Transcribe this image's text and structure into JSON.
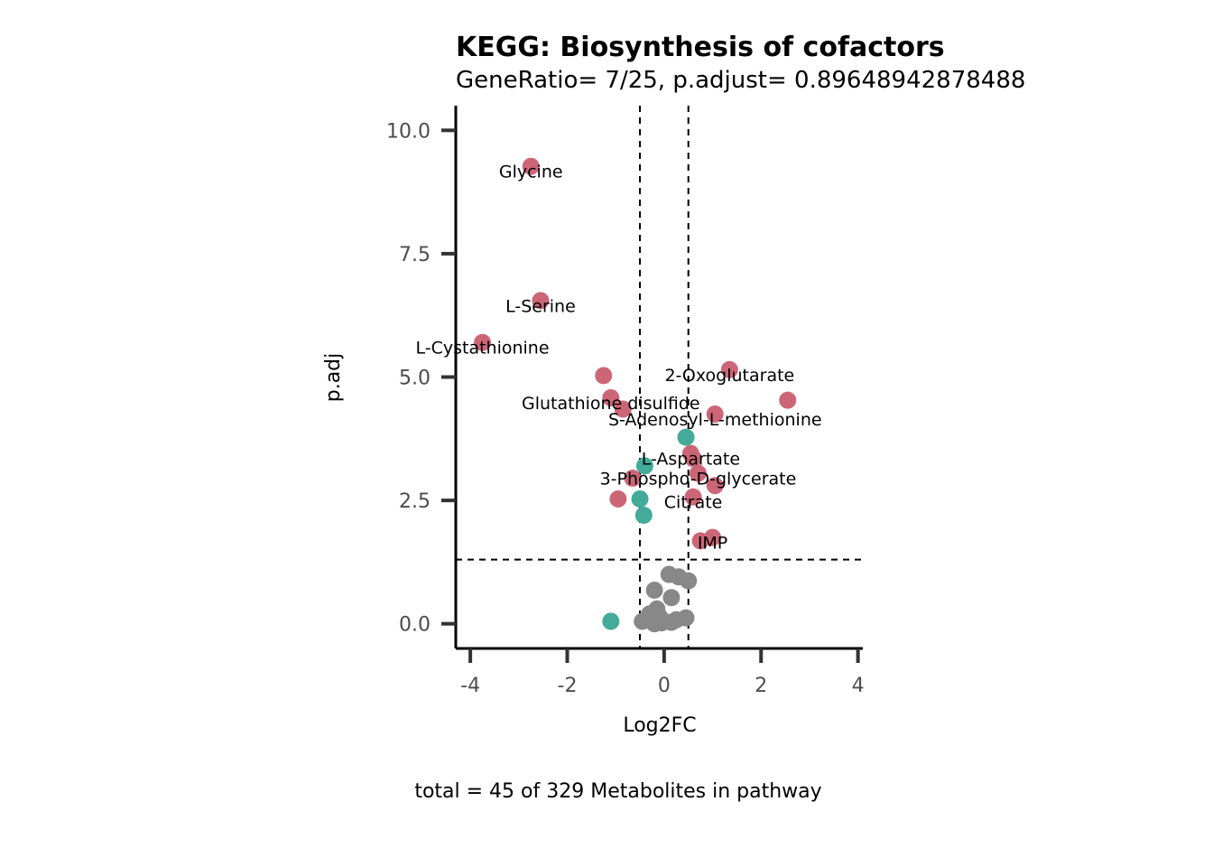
{
  "chart_data": {
    "type": "scatter",
    "title": "KEGG: Biosynthesis of cofactors",
    "subtitle": "GeneRatio= 7/25, p.adjust= 0.89648942878488",
    "xlabel": "Log2FC",
    "ylabel": "p.adj",
    "caption": "total = 45 of 329 Metabolites in pathway",
    "xlim": [
      -4.3,
      4.1
    ],
    "ylim": [
      -0.5,
      10.5
    ],
    "x_ticks": [
      -4,
      -2,
      0,
      2,
      4
    ],
    "x_tick_labels": [
      "-4",
      "-2",
      "0",
      "2",
      "4"
    ],
    "y_ticks": [
      0,
      2.5,
      5,
      7.5,
      10
    ],
    "y_tick_labels": [
      "0.0",
      "2.5",
      "5.0",
      "7.5",
      "10.0"
    ],
    "vlines": [
      -0.5,
      0.5
    ],
    "hline": 1.3,
    "grid": false,
    "colors": {
      "up": "#cc6677",
      "down": "#44aa99",
      "ns": "#888888"
    },
    "points": [
      {
        "x": -2.75,
        "y": 9.27,
        "group": "up"
      },
      {
        "x": -2.55,
        "y": 6.55,
        "group": "up"
      },
      {
        "x": -3.75,
        "y": 5.7,
        "group": "up"
      },
      {
        "x": -1.25,
        "y": 5.03,
        "group": "up"
      },
      {
        "x": -1.1,
        "y": 4.58,
        "group": "up"
      },
      {
        "x": -0.85,
        "y": 4.35,
        "group": "up"
      },
      {
        "x": 1.35,
        "y": 5.15,
        "group": "up"
      },
      {
        "x": 2.55,
        "y": 4.53,
        "group": "up"
      },
      {
        "x": 1.05,
        "y": 4.25,
        "group": "up"
      },
      {
        "x": 0.55,
        "y": 3.45,
        "group": "up"
      },
      {
        "x": 0.6,
        "y": 3.35,
        "group": "up"
      },
      {
        "x": 0.7,
        "y": 3.05,
        "group": "up"
      },
      {
        "x": -0.65,
        "y": 2.95,
        "group": "up"
      },
      {
        "x": 1.05,
        "y": 2.8,
        "group": "up"
      },
      {
        "x": -0.95,
        "y": 2.53,
        "group": "up"
      },
      {
        "x": 0.6,
        "y": 2.57,
        "group": "up"
      },
      {
        "x": 1.0,
        "y": 1.75,
        "group": "up"
      },
      {
        "x": 0.75,
        "y": 1.68,
        "group": "up"
      },
      {
        "x": 0.45,
        "y": 3.78,
        "group": "down"
      },
      {
        "x": -0.4,
        "y": 3.2,
        "group": "down"
      },
      {
        "x": -0.5,
        "y": 2.53,
        "group": "down"
      },
      {
        "x": -0.42,
        "y": 2.2,
        "group": "down"
      },
      {
        "x": -1.1,
        "y": 0.05,
        "group": "down"
      },
      {
        "x": 0.1,
        "y": 1.0,
        "group": "ns"
      },
      {
        "x": 0.3,
        "y": 0.95,
        "group": "ns"
      },
      {
        "x": 0.5,
        "y": 0.87,
        "group": "ns"
      },
      {
        "x": -0.2,
        "y": 0.68,
        "group": "ns"
      },
      {
        "x": 0.15,
        "y": 0.53,
        "group": "ns"
      },
      {
        "x": -0.15,
        "y": 0.3,
        "group": "ns"
      },
      {
        "x": -0.3,
        "y": 0.2,
        "group": "ns"
      },
      {
        "x": -0.1,
        "y": 0.15,
        "group": "ns"
      },
      {
        "x": 0.45,
        "y": 0.12,
        "group": "ns"
      },
      {
        "x": 0.25,
        "y": 0.08,
        "group": "ns"
      },
      {
        "x": -0.45,
        "y": 0.05,
        "group": "ns"
      },
      {
        "x": -0.25,
        "y": 0.05,
        "group": "ns"
      },
      {
        "x": 0.0,
        "y": 0.05,
        "group": "ns"
      },
      {
        "x": 0.15,
        "y": 0.03,
        "group": "ns"
      },
      {
        "x": -0.05,
        "y": 0.02,
        "group": "ns"
      },
      {
        "x": -0.2,
        "y": 0.0,
        "group": "ns"
      }
    ],
    "labels": [
      {
        "text": "Glycine",
        "x": -2.75,
        "y": 9.17
      },
      {
        "text": "L-Serine",
        "x": -2.55,
        "y": 6.45
      },
      {
        "text": "L-Cystathionine",
        "x": -3.75,
        "y": 5.6
      },
      {
        "text": "2-Oxoglutarate",
        "x": 1.35,
        "y": 5.05
      },
      {
        "text": "Glutathione disulfide",
        "x": -1.1,
        "y": 4.48
      },
      {
        "text": "S-Adenosyl-L-methionine",
        "x": 1.05,
        "y": 4.15
      },
      {
        "text": "L-Aspartate",
        "x": 0.55,
        "y": 3.35
      },
      {
        "text": "3-Phospho-D-glycerate",
        "x": 0.7,
        "y": 2.95
      },
      {
        "text": "Citrate",
        "x": 0.6,
        "y": 2.47
      },
      {
        "text": "IMP",
        "x": 1.0,
        "y": 1.65
      }
    ]
  }
}
